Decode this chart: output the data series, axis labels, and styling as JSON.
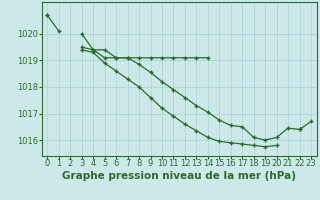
{
  "x": [
    0,
    1,
    2,
    3,
    4,
    5,
    6,
    7,
    8,
    9,
    10,
    11,
    12,
    13,
    14,
    15,
    16,
    17,
    18,
    19,
    20,
    21,
    22,
    23
  ],
  "line1": [
    1020.7,
    1020.1,
    null,
    1019.5,
    1019.4,
    1019.1,
    1019.1,
    1019.1,
    1019.1,
    1019.1,
    1019.1,
    1019.1,
    1019.1,
    1019.1,
    1019.1,
    null,
    null,
    null,
    null,
    null,
    null,
    null,
    null,
    null
  ],
  "line2": [
    1020.7,
    null,
    null,
    1020.0,
    1019.4,
    1019.4,
    1019.1,
    1019.1,
    1018.85,
    1018.55,
    1018.2,
    1017.9,
    1017.6,
    1017.3,
    1017.05,
    1016.75,
    1016.55,
    1016.5,
    1016.1,
    1016.0,
    1016.1,
    1016.45,
    1016.4,
    1016.7
  ],
  "line3": [
    null,
    null,
    null,
    1019.4,
    1019.3,
    1018.9,
    1018.6,
    1018.3,
    1018.0,
    1017.6,
    1017.2,
    1016.9,
    1016.6,
    1016.35,
    1016.1,
    1015.95,
    1015.9,
    1015.85,
    1015.8,
    1015.75,
    1015.8,
    null,
    1016.4,
    null
  ],
  "line_color": "#2d6a2d",
  "bg_color": "#cce8e8",
  "grid_color": "#aad0d0",
  "xlabel": "Graphe pression niveau de la mer (hPa)",
  "ylim": [
    1015.4,
    1021.2
  ],
  "xlim": [
    -0.5,
    23.5
  ],
  "yticks": [
    1016,
    1017,
    1018,
    1019,
    1020
  ],
  "xtick_labels": [
    "0",
    "1",
    "2",
    "3",
    "4",
    "5",
    "6",
    "7",
    "8",
    "9",
    "10",
    "11",
    "12",
    "13",
    "14",
    "15",
    "16",
    "17",
    "18",
    "19",
    "20",
    "21",
    "22",
    "23"
  ],
  "xlabel_fontsize": 7.5,
  "tick_fontsize": 6.0
}
